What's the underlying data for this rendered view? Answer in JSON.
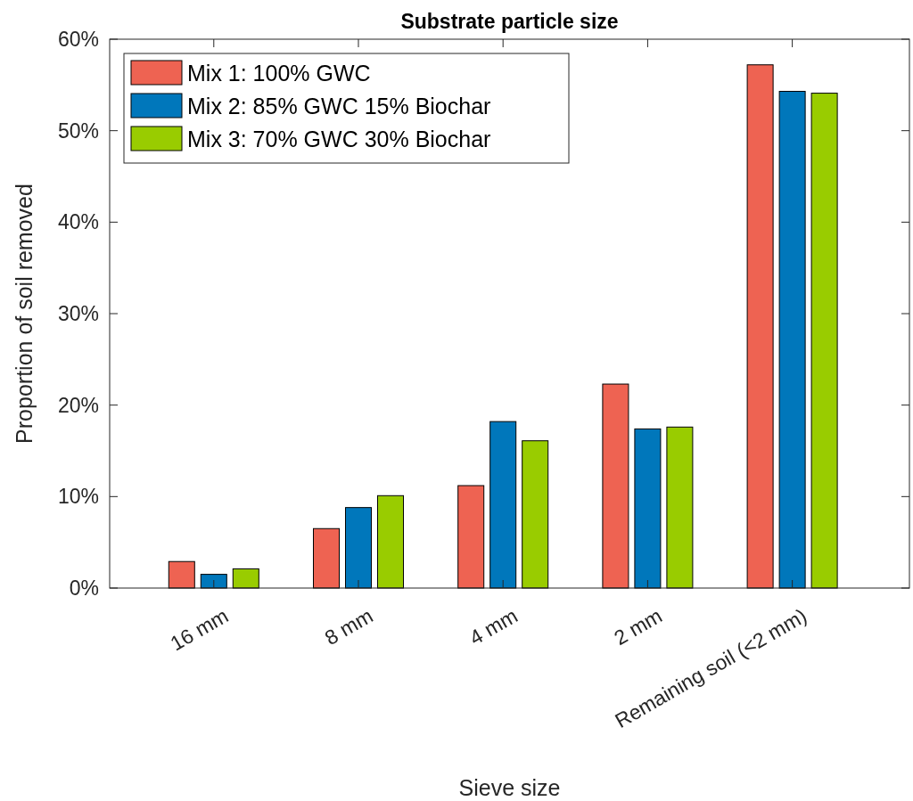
{
  "chart_data": {
    "type": "bar",
    "title": "Substrate particle size",
    "xlabel": "Sieve size",
    "ylabel": "Proportion of soil removed",
    "categories": [
      "16 mm",
      "8 mm",
      "4 mm",
      "2 mm",
      "Remaining soil (<2 mm)"
    ],
    "series": [
      {
        "name": "Mix 1: 100% GWC",
        "color": "#ee6352",
        "values": [
          2.9,
          6.5,
          11.2,
          22.3,
          57.2
        ]
      },
      {
        "name": "Mix 2: 85% GWC 15% Biochar",
        "color": "#0077bb",
        "values": [
          1.5,
          8.8,
          18.2,
          17.4,
          54.3
        ]
      },
      {
        "name": "Mix 3: 70% GWC 30% Biochar",
        "color": "#99cc00",
        "values": [
          2.1,
          10.1,
          16.1,
          17.6,
          54.1
        ]
      }
    ],
    "ylim": [
      0,
      60
    ],
    "yticks": [
      {
        "value": 0,
        "label": "0%"
      },
      {
        "value": 10,
        "label": "10%"
      },
      {
        "value": 20,
        "label": "20%"
      },
      {
        "value": 30,
        "label": "30%"
      },
      {
        "value": 40,
        "label": "40%"
      },
      {
        "value": 50,
        "label": "50%"
      },
      {
        "value": 60,
        "label": "60%"
      }
    ],
    "grid": false,
    "legend": "top left"
  }
}
